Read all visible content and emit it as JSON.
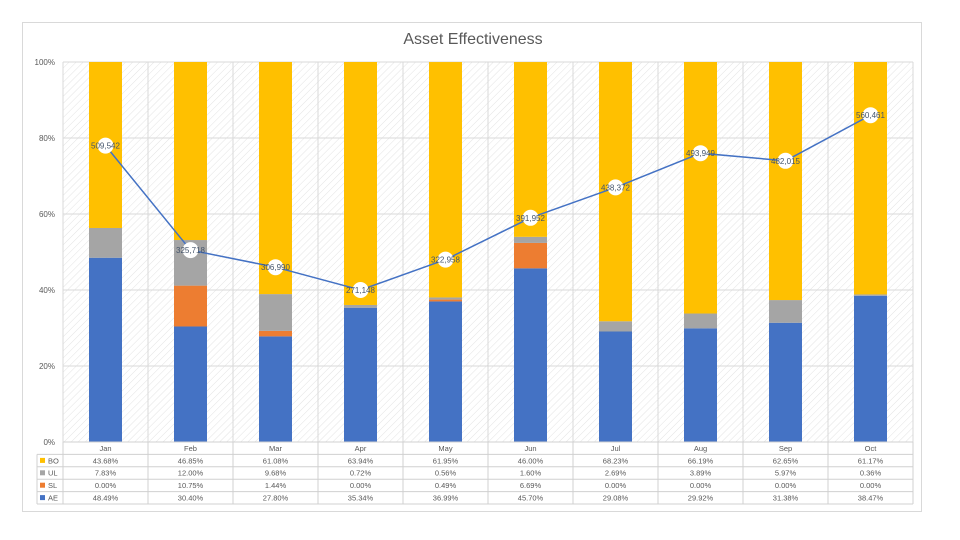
{
  "chart_data": {
    "type": "bar",
    "stacked": true,
    "title": "Asset Effectiveness",
    "categories": [
      "Jan",
      "Feb",
      "Mar",
      "Apr",
      "May",
      "Jun",
      "Jul",
      "Aug",
      "Sep",
      "Oct"
    ],
    "y_axis": {
      "min": 0,
      "max": 100,
      "unit": "%",
      "ticks": [
        "0%",
        "20%",
        "40%",
        "60%",
        "80%",
        "100%"
      ]
    },
    "grid": true,
    "legend": "data-table-below",
    "series": [
      {
        "name": "AE",
        "color": "#4472C4",
        "values": [
          48.49,
          30.4,
          27.8,
          35.34,
          36.99,
          45.7,
          29.08,
          29.92,
          31.38,
          38.47
        ],
        "labels": [
          "48.49%",
          "30.40%",
          "27.80%",
          "35.34%",
          "36.99%",
          "45.70%",
          "29.08%",
          "29.92%",
          "31.38%",
          "38.47%"
        ]
      },
      {
        "name": "SL",
        "color": "#ED7D31",
        "values": [
          0.0,
          10.75,
          1.44,
          0.0,
          0.49,
          6.69,
          0.0,
          0.0,
          0.0,
          0.0
        ],
        "labels": [
          "0.00%",
          "10.75%",
          "1.44%",
          "0.00%",
          "0.49%",
          "6.69%",
          "0.00%",
          "0.00%",
          "0.00%",
          "0.00%"
        ]
      },
      {
        "name": "UL",
        "color": "#A5A5A5",
        "values": [
          7.83,
          12.0,
          9.68,
          0.72,
          0.56,
          1.6,
          2.69,
          3.89,
          5.97,
          0.36
        ],
        "labels": [
          "7.83%",
          "12.00%",
          "9.68%",
          "0.72%",
          "0.56%",
          "1.60%",
          "2.69%",
          "3.89%",
          "5.97%",
          "0.36%"
        ]
      },
      {
        "name": "BO",
        "color": "#FFC000",
        "values": [
          43.68,
          46.85,
          61.08,
          63.94,
          61.95,
          46.0,
          68.23,
          66.19,
          62.65,
          61.17
        ],
        "labels": [
          "43.68%",
          "46.85%",
          "61.08%",
          "63.94%",
          "61.95%",
          "46.00%",
          "68.23%",
          "66.19%",
          "62.65%",
          "61.17%"
        ]
      }
    ],
    "line_series": {
      "color": "#4472C4",
      "values": [
        509542,
        325718,
        306990,
        271148,
        322958,
        391952,
        438372,
        493949,
        482015,
        560461
      ],
      "labels": [
        "509,542",
        "325,718",
        "306,990",
        "271,148",
        "322,958",
        "391,952",
        "438,372",
        "493,949",
        "482,015",
        "560,461"
      ],
      "plot_percent": [
        78,
        50.5,
        46,
        40,
        48,
        59,
        67,
        76,
        74,
        86
      ]
    }
  }
}
